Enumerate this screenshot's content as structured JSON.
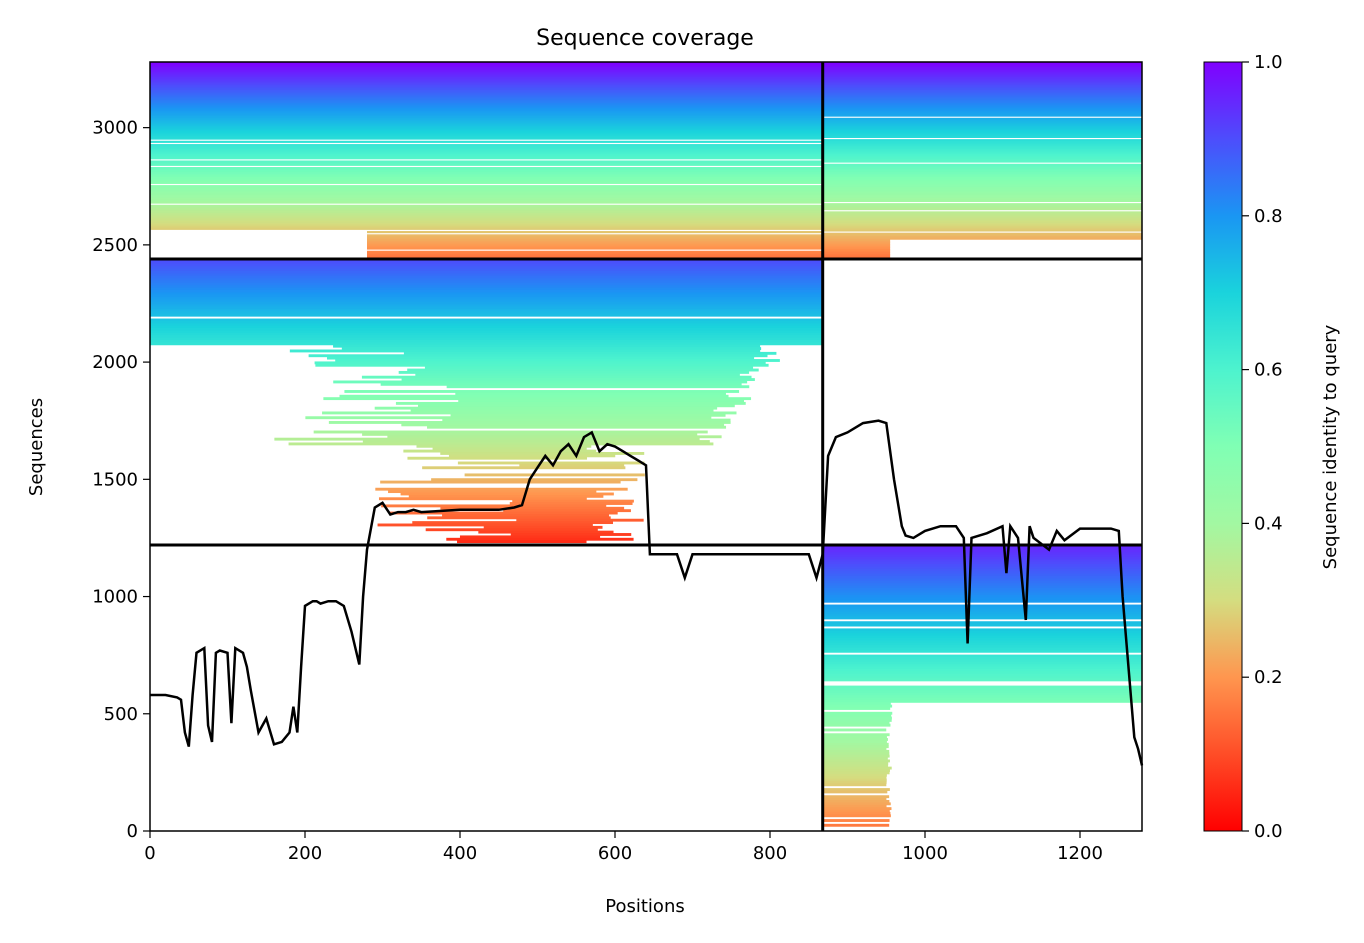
{
  "chart_data": {
    "type": "heatmap",
    "title": "Sequence coverage",
    "xlabel": "Positions",
    "ylabel": "Sequences",
    "xlim": [
      0,
      1280
    ],
    "ylim": [
      0,
      3280
    ],
    "x_ticks": [
      0,
      200,
      400,
      600,
      800,
      1000,
      1200
    ],
    "y_ticks": [
      0,
      500,
      1000,
      1500,
      2000,
      2500,
      3000
    ],
    "colorbar": {
      "label": "Sequence identity to query",
      "range": [
        0,
        1
      ],
      "ticks": [
        0.0,
        0.2,
        0.4,
        0.6,
        0.8,
        1.0
      ],
      "tick_labels": [
        "0.0",
        "0.2",
        "0.4",
        "0.6",
        "0.8",
        "1.0"
      ],
      "colormap": "rainbow"
    },
    "chain_boundaries": {
      "x": [
        868
      ],
      "y": [
        1220,
        2440
      ]
    },
    "blocks": [
      {
        "name": "chain-1-block",
        "x": [
          0,
          868
        ],
        "y": [
          2440,
          3280
        ],
        "identity_top": 1.0,
        "identity_bottom": 0.15
      },
      {
        "name": "chain-1-chain-2-block",
        "x": [
          0,
          868
        ],
        "y": [
          1220,
          2440
        ],
        "identity_top": 0.9,
        "identity_bottom": 0.05
      },
      {
        "name": "chain-3-block",
        "x": [
          868,
          1280
        ],
        "y": [
          2440,
          3280
        ],
        "identity_top": 1.0,
        "identity_bottom": 0.15
      },
      {
        "name": "chain-4-block",
        "x": [
          868,
          1280
        ],
        "y": [
          0,
          1220
        ],
        "identity_top": 0.95,
        "identity_bottom": 0.15
      }
    ],
    "coverage_line": {
      "x": [
        0,
        20,
        35,
        40,
        45,
        50,
        55,
        60,
        70,
        75,
        80,
        85,
        90,
        100,
        105,
        110,
        120,
        125,
        130,
        140,
        150,
        160,
        170,
        180,
        185,
        190,
        195,
        200,
        210,
        215,
        220,
        230,
        240,
        250,
        260,
        270,
        275,
        280,
        290,
        300,
        310,
        320,
        330,
        340,
        350,
        400,
        450,
        470,
        480,
        490,
        500,
        510,
        520,
        530,
        540,
        550,
        560,
        570,
        580,
        590,
        600,
        610,
        620,
        630,
        640,
        645,
        650,
        680,
        690,
        700,
        750,
        800,
        850,
        860,
        868,
        875,
        885,
        900,
        920,
        940,
        950,
        960,
        970,
        975,
        985,
        1000,
        1020,
        1040,
        1050,
        1055,
        1060,
        1080,
        1100,
        1105,
        1110,
        1120,
        1130,
        1135,
        1140,
        1160,
        1170,
        1180,
        1200,
        1220,
        1240,
        1250,
        1255,
        1260,
        1265,
        1270,
        1275,
        1280
      ],
      "y": [
        580,
        580,
        570,
        560,
        420,
        360,
        580,
        760,
        780,
        450,
        380,
        760,
        770,
        760,
        460,
        780,
        760,
        700,
        600,
        420,
        480,
        370,
        380,
        420,
        530,
        420,
        700,
        960,
        980,
        980,
        970,
        980,
        980,
        960,
        850,
        710,
        1000,
        1200,
        1380,
        1400,
        1350,
        1360,
        1360,
        1370,
        1360,
        1370,
        1370,
        1380,
        1390,
        1500,
        1550,
        1600,
        1560,
        1620,
        1650,
        1600,
        1680,
        1700,
        1620,
        1650,
        1640,
        1620,
        1600,
        1580,
        1560,
        1180,
        1180,
        1180,
        1080,
        1180,
        1180,
        1180,
        1180,
        1080,
        1180,
        1600,
        1680,
        1700,
        1740,
        1750,
        1740,
        1500,
        1300,
        1260,
        1250,
        1280,
        1300,
        1300,
        1250,
        800,
        1250,
        1270,
        1300,
        1100,
        1300,
        1250,
        900,
        1300,
        1250,
        1200,
        1280,
        1240,
        1290,
        1290,
        1290,
        1280,
        1000,
        800,
        600,
        400,
        350,
        280
      ]
    }
  }
}
